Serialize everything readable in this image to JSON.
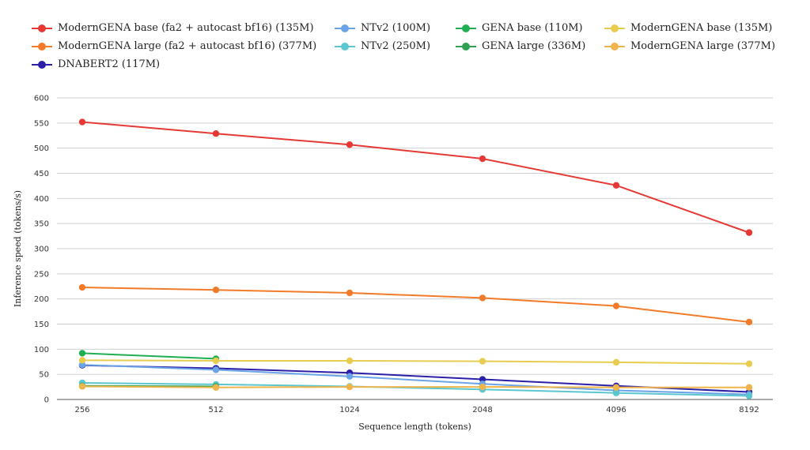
{
  "chart_data": {
    "type": "line",
    "xlabel": "Sequence length (tokens)",
    "ylabel": "Inference speed (tokens/s)",
    "x": [
      "256",
      "512",
      "1024",
      "2048",
      "4096",
      "8192"
    ],
    "ylim": [
      0,
      600
    ],
    "yticks": [
      0,
      50,
      100,
      150,
      200,
      250,
      300,
      350,
      400,
      450,
      500,
      550,
      600
    ],
    "grid": true,
    "legend_position": "top",
    "series": [
      {
        "name": "ModernGENA base (fa2 + autocast bf16) (135M)",
        "color": "#e53935",
        "values": [
          552,
          529,
          507,
          479,
          426,
          332
        ]
      },
      {
        "name": "ModernGENA large (fa2 + autocast bf16) (377M)",
        "color": "#f27b2a",
        "values": [
          223,
          218,
          212,
          202,
          186,
          154
        ]
      },
      {
        "name": "DNABERT2 (117M)",
        "color": "#2b1fa8",
        "values": [
          68,
          62,
          53,
          40,
          27,
          15
        ]
      },
      {
        "name": "NTv2 (100M)",
        "color": "#6aa3e6",
        "values": [
          69,
          59,
          46,
          31,
          18,
          10
        ]
      },
      {
        "name": "NTv2 (250M)",
        "color": "#5bc6d0",
        "values": [
          33,
          30,
          26,
          20,
          13,
          7
        ]
      },
      {
        "name": "GENA base (110M)",
        "color": "#1fae52",
        "values": [
          92,
          81,
          null,
          null,
          null,
          null
        ]
      },
      {
        "name": "GENA large (336M)",
        "color": "#2ea04f",
        "values": [
          27,
          26,
          null,
          null,
          null,
          null
        ]
      },
      {
        "name": "ModernGENA base (135M)",
        "color": "#e8cc4f",
        "values": [
          78,
          77,
          77,
          76,
          74,
          71
        ]
      },
      {
        "name": "ModernGENA large (377M)",
        "color": "#efb44c",
        "values": [
          26,
          24,
          25,
          25,
          24,
          24
        ]
      }
    ]
  },
  "legend_order": [
    0,
    3,
    5,
    7,
    1,
    4,
    6,
    8,
    2
  ]
}
